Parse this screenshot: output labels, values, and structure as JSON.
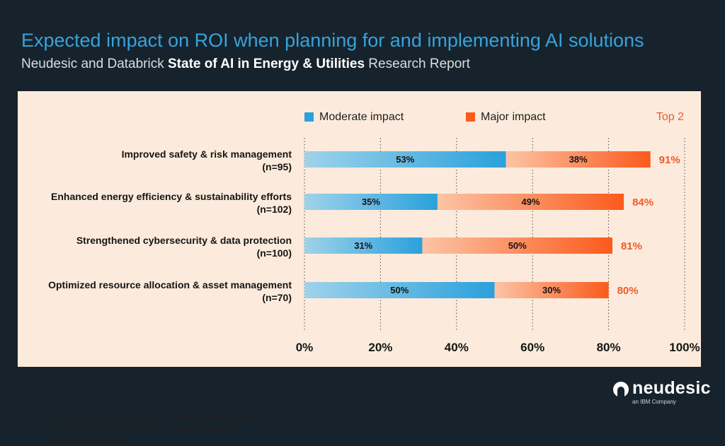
{
  "header": {
    "title": "Expected impact on ROI when planning for and implementing AI solutions",
    "subtitle_pre": "Neudesic and Databrick ",
    "subtitle_bold": "State of AI in Energy & Utilities",
    "subtitle_post": " Research Report"
  },
  "footnote": "*Data from a survey conducted in the summer of 2024 by Neudesic and Databricks in collaboration with Hanover Research.",
  "logo": {
    "wordmark": "neudesic",
    "tagline": "an IBM Company"
  },
  "colors": {
    "moderate": "#2aa1dc",
    "major": "#fb5a1c",
    "top2_text": "#f1592a",
    "panel": "#fcebdc",
    "background": "#17232c"
  },
  "chart_data": {
    "type": "bar",
    "orientation": "horizontal",
    "stacked": true,
    "categories": [
      [
        "Improved safety & risk management",
        "(n=95)"
      ],
      [
        "Enhanced energy efficiency & sustainability efforts",
        "(n=102)"
      ],
      [
        "Strengthened cybersecurity & data protection",
        "(n=100)"
      ],
      [
        "Optimized resource allocation & asset management",
        "(n=70)"
      ]
    ],
    "series": [
      {
        "name": "Moderate impact",
        "values": [
          53,
          35,
          31,
          50
        ]
      },
      {
        "name": "Major impact",
        "values": [
          38,
          49,
          50,
          30
        ]
      }
    ],
    "total_label": "Top 2",
    "totals": [
      91,
      84,
      81,
      80
    ],
    "xlim": [
      0,
      100
    ],
    "xticks": [
      0,
      20,
      40,
      60,
      80,
      100
    ],
    "tick_suffix": "%",
    "grid": "dotted vertical",
    "legend_position": "top"
  }
}
